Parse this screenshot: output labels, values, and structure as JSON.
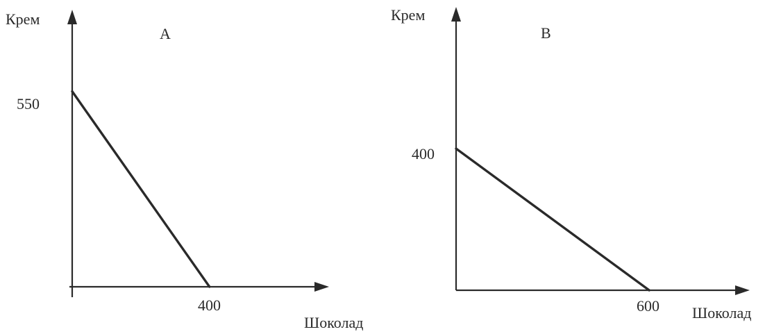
{
  "chart_data": [
    {
      "type": "line",
      "title": "A",
      "xlabel": "Шоколад",
      "ylabel": "Крем",
      "series": [
        {
          "x": [
            0,
            400
          ],
          "y": [
            550,
            0
          ]
        }
      ],
      "x_ticks": [
        "400"
      ],
      "y_ticks": [
        "550"
      ],
      "xlim": [
        0,
        720
      ],
      "ylim": [
        0,
        780
      ],
      "grid": false
    },
    {
      "type": "line",
      "title": "B",
      "xlabel": "Шоколад",
      "ylabel": "Крем",
      "series": [
        {
          "x": [
            0,
            600
          ],
          "y": [
            400,
            0
          ]
        }
      ],
      "x_ticks": [
        "600"
      ],
      "y_ticks": [
        "400"
      ],
      "xlim": [
        0,
        880
      ],
      "ylim": [
        0,
        800
      ],
      "grid": false
    }
  ]
}
